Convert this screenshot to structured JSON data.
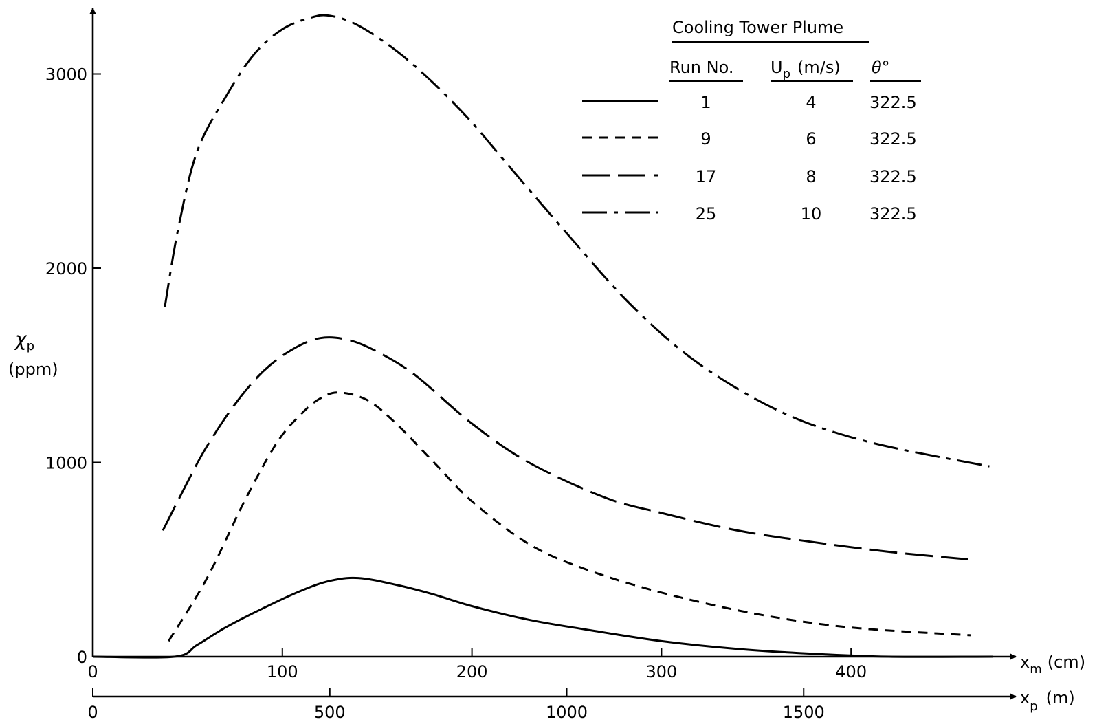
{
  "chart_data": {
    "type": "line",
    "title": "",
    "xlabel_model": "x",
    "xlabel_model_sub": "m",
    "xlabel_model_unit": "(cm)",
    "xlabel_proto": "x",
    "xlabel_proto_sub": "p",
    "xlabel_proto_unit": "(m)",
    "ylabel": "χ",
    "ylabel_sub": "p",
    "ylabel_unit": "(ppm)",
    "xlim": [
      0,
      475
    ],
    "ylim": [
      0,
      3300
    ],
    "x_ticks_model": [
      0,
      100,
      200,
      300,
      400
    ],
    "x_tick_labels_model": [
      "0",
      "100",
      "200",
      "300",
      "400"
    ],
    "x_ticks_proto_as_model": [
      0,
      125,
      250,
      375
    ],
    "x_tick_labels_proto": [
      "0",
      "500",
      "1000",
      "1500"
    ],
    "y_ticks": [
      0,
      1000,
      2000,
      3000
    ],
    "y_tick_labels": [
      "0",
      "1000",
      "2000",
      "3000"
    ],
    "legend": {
      "title": "Cooling Tower Plume",
      "headers": [
        "Run No.",
        "U",
        "p",
        "(m/s)",
        "θ°"
      ],
      "rows": [
        {
          "run": "1",
          "up": "4",
          "theta": "322.5",
          "dash": "solid"
        },
        {
          "run": "9",
          "up": "6",
          "theta": "322.5",
          "dash": "dashed"
        },
        {
          "run": "17",
          "up": "8",
          "theta": "322.5",
          "dash": "longdash"
        },
        {
          "run": "25",
          "up": "10",
          "theta": "322.5",
          "dash": "dashdot"
        }
      ]
    },
    "series": [
      {
        "name": "1",
        "dash": "solid",
        "x": [
          0,
          43,
          55,
          70,
          90,
          110,
          125,
          140,
          160,
          180,
          200,
          230,
          260,
          300,
          340,
          380,
          420,
          475
        ],
        "y": [
          0,
          0,
          60,
          150,
          250,
          340,
          390,
          405,
          370,
          320,
          260,
          190,
          140,
          80,
          40,
          15,
          0,
          0
        ]
      },
      {
        "name": "9",
        "dash": "dashed",
        "x": [
          40,
          60,
          80,
          97,
          110,
          120,
          130,
          145,
          160,
          180,
          200,
          230,
          260,
          300,
          350,
          400,
          463
        ],
        "y": [
          80,
          400,
          800,
          1100,
          1250,
          1330,
          1360,
          1320,
          1200,
          1000,
          800,
          580,
          450,
          330,
          220,
          150,
          110
        ]
      },
      {
        "name": "17",
        "dash": "longdash",
        "x": [
          37,
          50,
          60,
          75,
          90,
          105,
          120,
          135,
          150,
          170,
          200,
          230,
          270,
          300,
          340,
          380,
          420,
          463
        ],
        "y": [
          650,
          900,
          1080,
          1300,
          1470,
          1580,
          1640,
          1630,
          1570,
          1450,
          1200,
          1000,
          820,
          740,
          650,
          590,
          540,
          500
        ]
      },
      {
        "name": "25",
        "dash": "dashdot",
        "x": [
          38,
          45,
          55,
          70,
          85,
          100,
          115,
          125,
          140,
          160,
          180,
          200,
          220,
          250,
          280,
          310,
          340,
          370,
          400,
          430,
          473
        ],
        "y": [
          1800,
          2200,
          2600,
          2880,
          3100,
          3230,
          3290,
          3300,
          3250,
          3120,
          2950,
          2750,
          2520,
          2180,
          1850,
          1580,
          1380,
          1230,
          1130,
          1060,
          980
        ]
      }
    ]
  }
}
